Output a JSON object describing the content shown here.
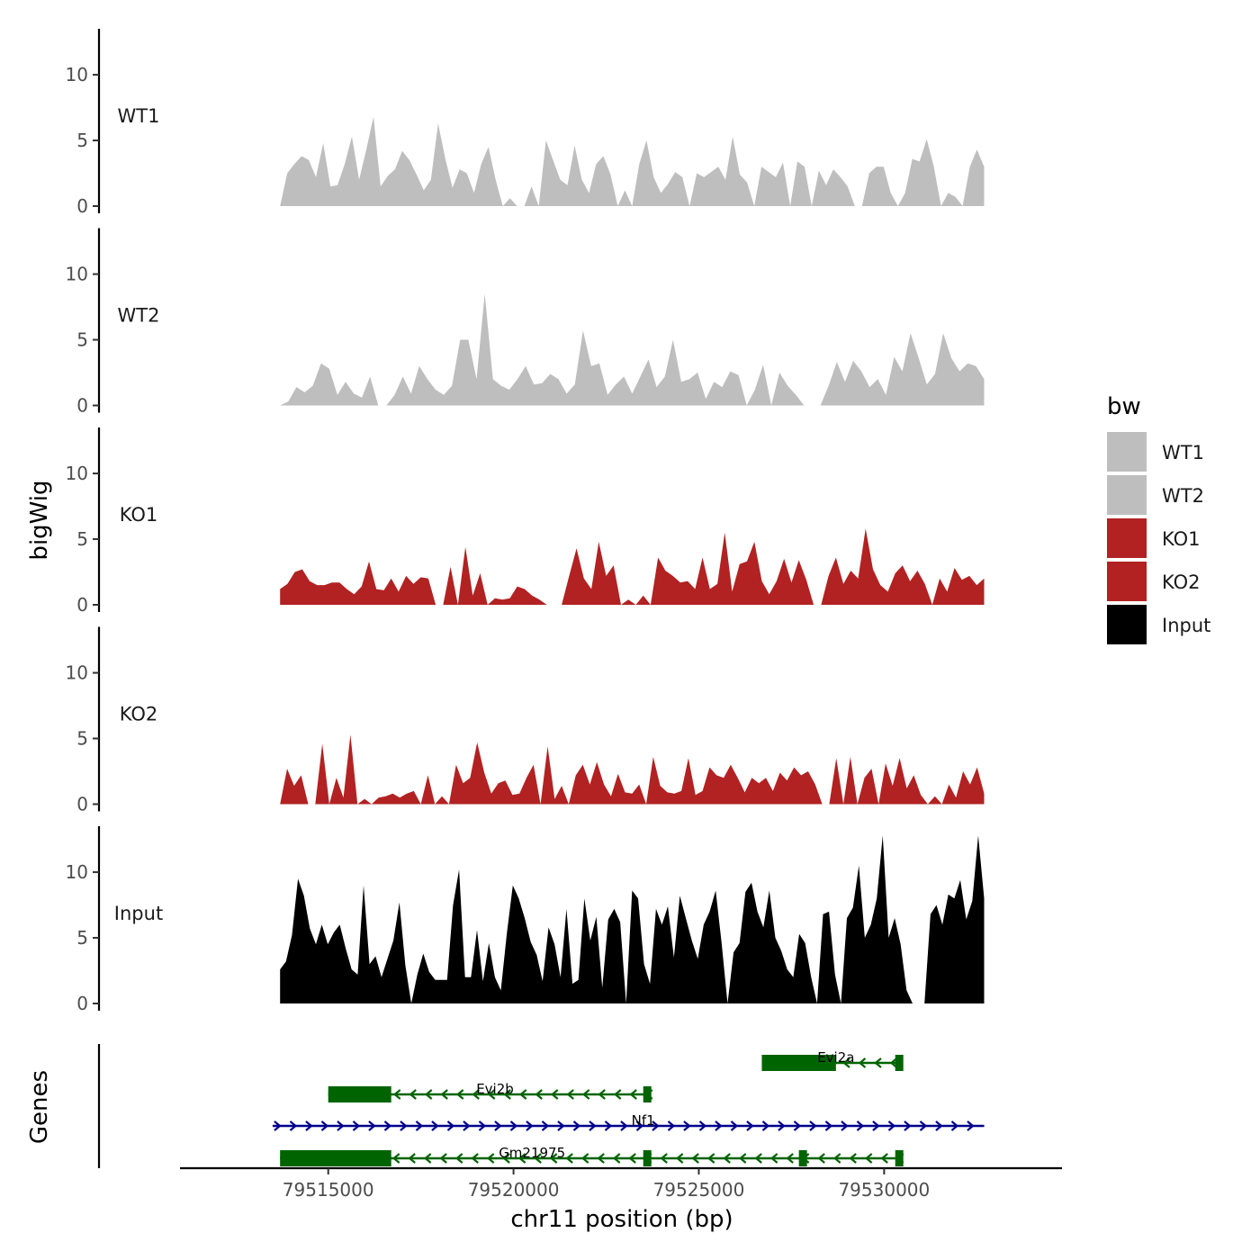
{
  "chart_data": {
    "type": "area",
    "title": "",
    "xlabel": "chr11 position (bp)",
    "ylabel_top": "bigWig",
    "ylabel_bottom": "Genes",
    "xlim": [
      79511000,
      79534800
    ],
    "x_ticks": [
      79515000,
      79520000,
      79525000,
      79530000
    ],
    "x_tick_labels": [
      "79515000",
      "79520000",
      "79525000",
      "79530000"
    ],
    "ylim": [
      0,
      13.5
    ],
    "y_ticks": [
      0,
      5,
      10
    ],
    "y_tick_labels": [
      "0",
      "5",
      "10"
    ],
    "legend": {
      "title": "bw",
      "position": "right",
      "entries": [
        {
          "label": "WT1",
          "color": "#bebebe"
        },
        {
          "label": "WT2",
          "color": "#bebebe"
        },
        {
          "label": "KO1",
          "color": "#b22222"
        },
        {
          "label": "KO2",
          "color": "#b22222"
        },
        {
          "label": "Input",
          "color": "#000000"
        }
      ]
    },
    "tracks": [
      {
        "name": "WT1",
        "color": "#bebebe",
        "x_start": 79513700,
        "x_end": 79532700,
        "values": [
          0,
          2.5,
          3.2,
          3.8,
          3.5,
          2.2,
          4.8,
          1.5,
          1.6,
          3.2,
          5.3,
          2.0,
          4.3,
          6.8,
          1.5,
          2.3,
          2.8,
          4.2,
          3.5,
          2.4,
          1.2,
          2.0,
          6.3,
          3.6,
          1.4,
          2.8,
          2.5,
          1.0,
          3.2,
          4.5,
          2.0,
          0,
          0.6,
          0,
          0,
          1.5,
          0,
          5.0,
          3.5,
          2.0,
          1.6,
          4.6,
          2.0,
          1.0,
          3.2,
          3.8,
          2.4,
          0,
          1.2,
          0,
          3.2,
          5.0,
          2.2,
          1.0,
          1.7,
          2.6,
          2.2,
          0,
          2.5,
          2.2,
          2.6,
          3.0,
          2.0,
          5.3,
          2.4,
          1.8,
          0,
          3.0,
          2.6,
          2.2,
          3.3,
          0,
          3.4,
          3.0,
          0,
          2.7,
          1.6,
          2.8,
          2.2,
          1.5,
          0,
          0,
          2.5,
          3.0,
          3.0,
          1.0,
          0,
          1.0,
          3.6,
          3.4,
          5.1,
          3.0,
          0,
          1.0,
          0.7,
          0,
          3.0,
          4.3,
          3.0
        ]
      },
      {
        "name": "WT2",
        "color": "#bebebe",
        "x_start": 79513700,
        "x_end": 79532700,
        "values": [
          0,
          0.3,
          1.4,
          1.0,
          1.5,
          3.2,
          2.8,
          0.8,
          1.8,
          0.9,
          0.6,
          2.2,
          0,
          0,
          0.8,
          2.2,
          0.9,
          3.0,
          2.0,
          1.2,
          0.8,
          1.5,
          5.0,
          5.0,
          2.0,
          8.5,
          2.0,
          1.5,
          1.2,
          2.0,
          3.0,
          1.6,
          1.7,
          2.4,
          2.0,
          0.9,
          1.6,
          5.7,
          3.0,
          3.2,
          0.8,
          1.6,
          2.2,
          0.9,
          2.2,
          3.5,
          1.4,
          2.2,
          5.0,
          1.8,
          2.0,
          2.5,
          0.5,
          1.8,
          1.4,
          2.6,
          2.3,
          0,
          1.2,
          3.1,
          0,
          2.5,
          1.5,
          0.8,
          0,
          0,
          0,
          1.5,
          3.3,
          1.8,
          3.4,
          2.6,
          1.4,
          2.0,
          0.8,
          3.7,
          2.6,
          5.5,
          3.6,
          1.6,
          2.4,
          5.5,
          3.6,
          2.6,
          3.2,
          3.0,
          2.0
        ]
      },
      {
        "name": "KO1",
        "color": "#b22222",
        "x_start": 79513700,
        "x_end": 79532700,
        "values": [
          1.2,
          1.6,
          2.5,
          2.7,
          1.8,
          1.5,
          1.5,
          1.7,
          1.7,
          1.2,
          0.8,
          1.4,
          3.3,
          1.2,
          1.1,
          2.0,
          1.0,
          2.2,
          1.6,
          2.1,
          2.0,
          0,
          0,
          2.9,
          0,
          4.4,
          0.7,
          2.4,
          0,
          0.5,
          0.4,
          0.5,
          1.4,
          1.2,
          0.7,
          0.4,
          0,
          0,
          0,
          2.2,
          4.3,
          2.0,
          1.2,
          4.8,
          2.2,
          3.0,
          0,
          0.4,
          0,
          0.7,
          0,
          3.6,
          2.6,
          2.2,
          1.7,
          1.8,
          1.2,
          3.6,
          1.2,
          1.6,
          5.5,
          1.0,
          3.1,
          3.3,
          4.8,
          1.8,
          0.8,
          1.8,
          3.5,
          1.7,
          3.4,
          1.9,
          0,
          0,
          2.2,
          3.6,
          1.6,
          2.6,
          2.0,
          5.8,
          2.7,
          1.5,
          1.0,
          2.4,
          3.0,
          1.8,
          2.6,
          1.6,
          0,
          2.0,
          1.0,
          2.8,
          1.9,
          2.2,
          1.5,
          2.0
        ]
      },
      {
        "name": "KO2",
        "color": "#b22222",
        "x_start": 79513700,
        "x_end": 79532700,
        "values": [
          0,
          2.7,
          1.4,
          2.2,
          0,
          0,
          4.6,
          0,
          2.0,
          0.5,
          5.3,
          0,
          0.4,
          0,
          0.5,
          0.6,
          0.8,
          0.5,
          0.8,
          1.0,
          0,
          2.2,
          0,
          0.6,
          0,
          3.0,
          1.6,
          2.0,
          4.7,
          2.4,
          0.8,
          1.6,
          1.8,
          0.7,
          0.8,
          2.0,
          3.0,
          0,
          4.4,
          0.4,
          1.4,
          0,
          2.2,
          3.0,
          1.5,
          3.2,
          1.5,
          0.6,
          2.3,
          0.9,
          0.8,
          1.5,
          0,
          3.6,
          1.4,
          0.9,
          0.8,
          1.0,
          3.5,
          0.7,
          1.0,
          2.8,
          2.2,
          2.0,
          3.0,
          2.0,
          0.9,
          2.0,
          1.6,
          2.0,
          1.0,
          2.4,
          1.8,
          2.8,
          2.2,
          2.5,
          1.5,
          0,
          0,
          3.5,
          0,
          3.6,
          0,
          2.0,
          2.7,
          0,
          3.1,
          1.4,
          3.5,
          1.2,
          2.2,
          0.7,
          0,
          0.6,
          0,
          1.5,
          0.5,
          2.5,
          1.5,
          2.8,
          0.8
        ]
      },
      {
        "name": "Input",
        "color": "#000000",
        "x_start": 79513700,
        "x_end": 79532700,
        "values": [
          2.6,
          3.2,
          5.2,
          9.5,
          8.2,
          5.7,
          4.5,
          6.0,
          4.5,
          5.4,
          6.0,
          4.2,
          2.6,
          2.2,
          9.0,
          3.0,
          3.6,
          2.0,
          3.4,
          4.8,
          7.7,
          2.9,
          0,
          2.2,
          3.8,
          2.4,
          1.8,
          1.8,
          1.8,
          7.5,
          10.2,
          2.0,
          2.0,
          5.6,
          1.7,
          4.6,
          2.0,
          1.0,
          5.3,
          9.0,
          8.0,
          6.5,
          4.7,
          3.7,
          1.7,
          5.8,
          4.5,
          2.0,
          7.2,
          1.5,
          1.8,
          8.0,
          4.8,
          6.6,
          1.2,
          6.4,
          7.2,
          6.2,
          0,
          8.6,
          8.0,
          3.0,
          1.5,
          7.2,
          6.0,
          7.4,
          3.5,
          8.2,
          6.5,
          4.8,
          3.4,
          6.0,
          7.0,
          8.6,
          4.6,
          0,
          3.9,
          4.6,
          8.5,
          9.2,
          7.0,
          5.8,
          8.6,
          5.0,
          4.0,
          2.6,
          2.0,
          5.3,
          4.6,
          2.0,
          0,
          6.8,
          7.0,
          2.2,
          0,
          6.5,
          7.3,
          10.5,
          5.0,
          6.0,
          8.0,
          12.8,
          5.0,
          6.5,
          4.5,
          1.0,
          0,
          0,
          0,
          6.8,
          7.5,
          6.0,
          8.3,
          8.0,
          9.4,
          6.4,
          7.8,
          12.8,
          8.0
        ]
      }
    ],
    "genes": [
      {
        "name": "Evi2a",
        "strand": "-",
        "start": 79526700,
        "end": 79530500,
        "label_x": 79528700,
        "row": 1,
        "exons": [
          {
            "start": 79526700,
            "end": 79528700
          },
          {
            "start": 79530300,
            "end": 79530500
          }
        ]
      },
      {
        "name": "Evi2b",
        "strand": "-",
        "start": 79515000,
        "end": 79523700,
        "label_x": 79519500,
        "row": 2,
        "exons": [
          {
            "start": 79515000,
            "end": 79516700
          },
          {
            "start": 79523500,
            "end": 79523700
          }
        ]
      },
      {
        "name": "Nf1",
        "strand": "+",
        "start": 79513500,
        "end": 79532700,
        "label_x": 79523500,
        "row": 3,
        "exons": []
      },
      {
        "name": "Gm21975",
        "strand": "-",
        "start": 79513700,
        "end": 79530500,
        "label_x": 79520500,
        "row": 4,
        "exons": [
          {
            "start": 79513700,
            "end": 79516700
          },
          {
            "start": 79523500,
            "end": 79523650
          },
          {
            "start": 79527700,
            "end": 79527900
          },
          {
            "start": 79530300,
            "end": 79530500
          }
        ]
      }
    ]
  }
}
